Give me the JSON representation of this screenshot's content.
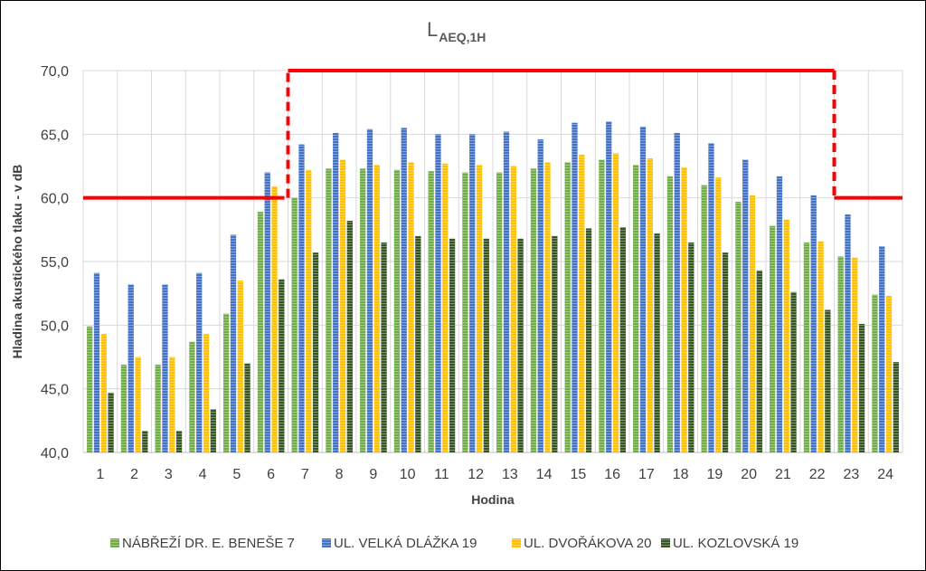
{
  "chart_data": {
    "type": "bar",
    "title_main": "L",
    "title_sub": "AEQ,1H",
    "xlabel": "Hodina",
    "ylabel": "Hladina akustického tlaku - v dB",
    "ylim": [
      40,
      70
    ],
    "yticks": [
      "40,0",
      "45,0",
      "50,0",
      "55,0",
      "60,0",
      "65,0",
      "70,0"
    ],
    "categories": [
      "1",
      "2",
      "3",
      "4",
      "5",
      "6",
      "7",
      "8",
      "9",
      "10",
      "11",
      "12",
      "13",
      "14",
      "15",
      "16",
      "17",
      "18",
      "19",
      "20",
      "21",
      "22",
      "23",
      "24"
    ],
    "series": [
      {
        "name": "NÁBŘEŽÍ DR. E. BENEŠE 7",
        "color": "#70ad47",
        "values": [
          49.9,
          46.9,
          46.9,
          48.7,
          50.9,
          58.9,
          60.0,
          62.3,
          62.3,
          62.2,
          62.1,
          62.0,
          62.0,
          62.3,
          62.8,
          63.0,
          62.6,
          61.7,
          61.0,
          59.7,
          57.8,
          56.5,
          55.4,
          52.4
        ]
      },
      {
        "name": "UL. VELKÁ DLÁŽKA 19",
        "color": "#4472c4",
        "values": [
          54.1,
          53.2,
          53.2,
          54.1,
          57.1,
          62.0,
          64.2,
          65.1,
          65.4,
          65.5,
          65.0,
          65.0,
          65.2,
          64.6,
          65.9,
          66.0,
          65.6,
          65.1,
          64.3,
          63.0,
          61.7,
          60.2,
          58.7,
          56.2
        ]
      },
      {
        "name": "UL. DVOŘÁKOVA 20",
        "color": "#ffc000",
        "values": [
          49.3,
          47.5,
          47.5,
          49.3,
          53.5,
          60.9,
          62.2,
          63.0,
          62.6,
          62.8,
          62.7,
          62.6,
          62.5,
          62.8,
          63.4,
          63.5,
          63.1,
          62.4,
          61.6,
          60.2,
          58.3,
          56.6,
          55.3,
          52.3
        ]
      },
      {
        "name": "UL. KOZLOVSKÁ 19",
        "color": "#375623",
        "values": [
          44.7,
          41.7,
          41.7,
          43.4,
          47.0,
          53.6,
          55.7,
          58.2,
          56.5,
          57.0,
          56.8,
          56.8,
          56.8,
          57.0,
          57.6,
          57.7,
          57.2,
          56.5,
          55.7,
          54.3,
          52.6,
          51.2,
          50.1,
          47.1
        ]
      }
    ],
    "limit_line": {
      "color": "#ff0000",
      "day_value": 70,
      "night_value": 60,
      "day_start_hour": 7,
      "day_end_hour": 22
    },
    "grid": true,
    "legend": "bottom"
  }
}
